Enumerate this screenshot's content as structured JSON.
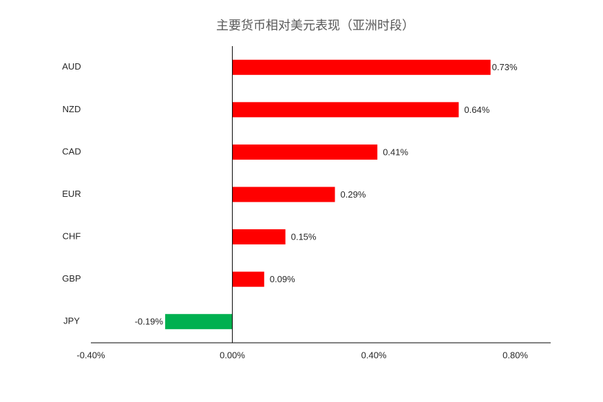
{
  "chart_data": {
    "type": "hbar",
    "title": "主要货币相对美元表现（亚洲时段）",
    "categories": [
      "AUD",
      "NZD",
      "CAD",
      "EUR",
      "CHF",
      "GBP",
      "JPY"
    ],
    "values": [
      0.73,
      0.64,
      0.41,
      0.29,
      0.15,
      0.09,
      -0.19
    ],
    "value_labels": [
      "0.73%",
      "0.64%",
      "0.41%",
      "0.29%",
      "0.15%",
      "0.09%",
      "-0.19%"
    ],
    "colors": [
      "#ff0000",
      "#ff0000",
      "#ff0000",
      "#ff0000",
      "#ff0000",
      "#ff0000",
      "#00b050"
    ],
    "xlim": [
      -0.4,
      0.9
    ],
    "xticks": [
      {
        "value": -0.4,
        "label": "-0.40%"
      },
      {
        "value": 0,
        "label": "0.00%"
      },
      {
        "value": 0.4,
        "label": "0.40%"
      },
      {
        "value": 0.8,
        "label": "0.80%"
      }
    ]
  }
}
